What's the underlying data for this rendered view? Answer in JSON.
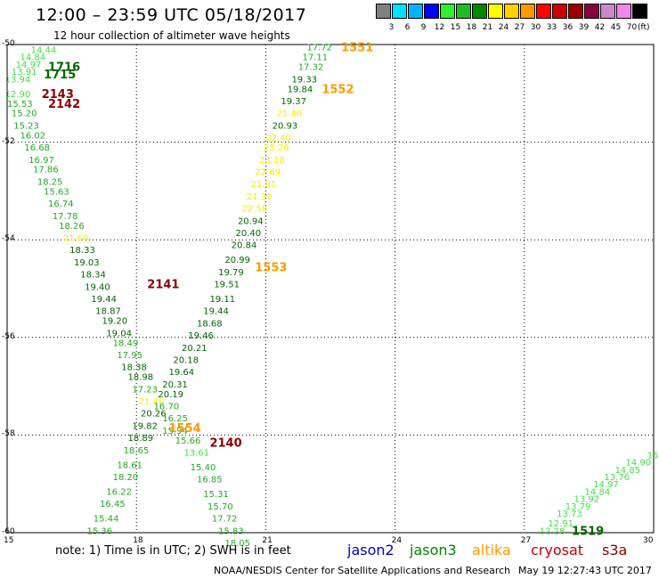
{
  "header": {
    "title": "12:00 – 23:59 UTC 05/18/2017",
    "subtitle": "12 hour collection of altimeter wave heights"
  },
  "colorbar": {
    "colors": [
      "#808080",
      "#00e0ff",
      "#00b4ff",
      "#0000ff",
      "#33ee33",
      "#22bb22",
      "#008800",
      "#ffff00",
      "#ffd000",
      "#ff9900",
      "#ff0000",
      "#cc0000",
      "#990000",
      "#880044",
      "#cc88cc",
      "#ee88ee",
      "#000000"
    ],
    "labels": [
      "3",
      "6",
      "9",
      "12",
      "15",
      "18",
      "21",
      "24",
      "27",
      "30",
      "33",
      "36",
      "39",
      "42",
      "45",
      "70"
    ],
    "unit": "(ft)"
  },
  "axes": {
    "x_ticks": [
      "15",
      "18",
      "21",
      "24",
      "27",
      "30"
    ],
    "y_ticks": [
      "-50",
      "-52",
      "-54",
      "-56",
      "-58",
      "-60"
    ]
  },
  "colors": {
    "lightgreen": "#44dd44",
    "medgreen": "#22aa22",
    "darkgreen": "#006600",
    "yellow": "#f0f000",
    "orange": "#ff9900",
    "darkred": "#8b0000"
  },
  "track_labels": [
    {
      "text": "1716",
      "x": 15.95,
      "y": -50.45,
      "c": "darkgreen",
      "b": 1
    },
    {
      "text": "1715",
      "x": 15.85,
      "y": -50.6,
      "c": "darkgreen",
      "b": 1
    },
    {
      "text": "2143",
      "x": 15.8,
      "y": -51.0,
      "c": "darkred",
      "b": 1
    },
    {
      "text": "2142",
      "x": 15.95,
      "y": -51.2,
      "c": "darkred",
      "b": 1
    },
    {
      "text": "1551",
      "x": 22.75,
      "y": -50.05,
      "c": "orange",
      "b": 1
    },
    {
      "text": "1552",
      "x": 22.3,
      "y": -50.9,
      "c": "orange",
      "b": 1
    },
    {
      "text": "1553",
      "x": 20.75,
      "y": -54.55,
      "c": "orange",
      "b": 1
    },
    {
      "text": "2141",
      "x": 18.25,
      "y": -54.9,
      "c": "darkred",
      "b": 1
    },
    {
      "text": "1554",
      "x": 18.75,
      "y": -57.85,
      "c": "orange",
      "b": 1
    },
    {
      "text": "2140",
      "x": 19.7,
      "y": -58.15,
      "c": "darkred",
      "b": 1
    },
    {
      "text": "1519",
      "x": 28.1,
      "y": -59.95,
      "c": "darkgreen",
      "b": 1
    }
  ],
  "wave_heights": [
    {
      "text": "14.44",
      "x": 15.55,
      "y": -50.1,
      "c": "lightgreen"
    },
    {
      "text": "14.84",
      "x": 15.3,
      "y": -50.25,
      "c": "lightgreen"
    },
    {
      "text": "14.97",
      "x": 15.2,
      "y": -50.4,
      "c": "lightgreen"
    },
    {
      "text": "13.91",
      "x": 15.1,
      "y": -50.55,
      "c": "lightgreen"
    },
    {
      "text": "13.94",
      "x": 14.95,
      "y": -50.7,
      "c": "lightgreen"
    },
    {
      "text": "12.90",
      "x": 14.95,
      "y": -51.0,
      "c": "lightgreen"
    },
    {
      "text": "15.53",
      "x": 15.0,
      "y": -51.2,
      "c": "medgreen"
    },
    {
      "text": "15.20",
      "x": 15.1,
      "y": -51.4,
      "c": "medgreen"
    },
    {
      "text": "15.23",
      "x": 15.15,
      "y": -51.65,
      "c": "medgreen"
    },
    {
      "text": "16.02",
      "x": 15.3,
      "y": -51.85,
      "c": "medgreen"
    },
    {
      "text": "16.68",
      "x": 15.4,
      "y": -52.1,
      "c": "medgreen"
    },
    {
      "text": "16.97",
      "x": 15.5,
      "y": -52.35,
      "c": "medgreen"
    },
    {
      "text": "17.86",
      "x": 15.6,
      "y": -52.55,
      "c": "medgreen"
    },
    {
      "text": "18.25",
      "x": 15.7,
      "y": -52.8,
      "c": "medgreen"
    },
    {
      "text": "15.63",
      "x": 15.85,
      "y": -53.0,
      "c": "medgreen"
    },
    {
      "text": "16.74",
      "x": 15.95,
      "y": -53.25,
      "c": "medgreen"
    },
    {
      "text": "17.78",
      "x": 16.05,
      "y": -53.5,
      "c": "medgreen"
    },
    {
      "text": "18.26",
      "x": 16.2,
      "y": -53.7,
      "c": "medgreen"
    },
    {
      "text": "21.60",
      "x": 16.3,
      "y": -53.95,
      "c": "yellow"
    },
    {
      "text": "18.33",
      "x": 16.45,
      "y": -54.2,
      "c": "darkgreen"
    },
    {
      "text": "19.03",
      "x": 16.55,
      "y": -54.45,
      "c": "darkgreen"
    },
    {
      "text": "18.34",
      "x": 16.7,
      "y": -54.7,
      "c": "darkgreen"
    },
    {
      "text": "19.40",
      "x": 16.8,
      "y": -54.95,
      "c": "darkgreen"
    },
    {
      "text": "19.44",
      "x": 16.95,
      "y": -55.2,
      "c": "darkgreen"
    },
    {
      "text": "18.87",
      "x": 17.05,
      "y": -55.45,
      "c": "darkgreen"
    },
    {
      "text": "19.20",
      "x": 17.2,
      "y": -55.65,
      "c": "darkgreen"
    },
    {
      "text": "19.04",
      "x": 17.3,
      "y": -55.9,
      "c": "darkgreen"
    },
    {
      "text": "18.49",
      "x": 17.45,
      "y": -56.1,
      "c": "medgreen"
    },
    {
      "text": "17.95",
      "x": 17.55,
      "y": -56.35,
      "c": "medgreen"
    },
    {
      "text": "18.38",
      "x": 17.65,
      "y": -56.6,
      "c": "darkgreen"
    },
    {
      "text": "18.98",
      "x": 17.8,
      "y": -56.8,
      "c": "darkgreen"
    },
    {
      "text": "17.23",
      "x": 17.9,
      "y": -57.05,
      "c": "medgreen"
    },
    {
      "text": "21.46",
      "x": 18.05,
      "y": -57.3,
      "c": "yellow"
    },
    {
      "text": "20.26",
      "x": 18.1,
      "y": -57.55,
      "c": "darkgreen"
    },
    {
      "text": "19.82",
      "x": 17.9,
      "y": -57.8,
      "c": "darkgreen"
    },
    {
      "text": "18.89",
      "x": 17.8,
      "y": -58.05,
      "c": "darkgreen"
    },
    {
      "text": "18.65",
      "x": 17.7,
      "y": -58.3,
      "c": "medgreen"
    },
    {
      "text": "18.61",
      "x": 17.55,
      "y": -58.6,
      "c": "medgreen"
    },
    {
      "text": "18.20",
      "x": 17.45,
      "y": -58.85,
      "c": "medgreen"
    },
    {
      "text": "16.22",
      "x": 17.3,
      "y": -59.15,
      "c": "medgreen"
    },
    {
      "text": "16.45",
      "x": 17.15,
      "y": -59.4,
      "c": "medgreen"
    },
    {
      "text": "15.44",
      "x": 17.0,
      "y": -59.7,
      "c": "medgreen"
    },
    {
      "text": "15.36",
      "x": 16.85,
      "y": -59.95,
      "c": "medgreen"
    },
    {
      "text": "17.72",
      "x": 21.95,
      "y": -50.05,
      "c": "medgreen"
    },
    {
      "text": "17.11",
      "x": 21.85,
      "y": -50.25,
      "c": "medgreen"
    },
    {
      "text": "17.32",
      "x": 21.75,
      "y": -50.45,
      "c": "medgreen"
    },
    {
      "text": "19.33",
      "x": 21.6,
      "y": -50.7,
      "c": "darkgreen"
    },
    {
      "text": "19.84",
      "x": 21.5,
      "y": -50.9,
      "c": "darkgreen"
    },
    {
      "text": "19.37",
      "x": 21.35,
      "y": -51.15,
      "c": "darkgreen"
    },
    {
      "text": "21.40",
      "x": 21.25,
      "y": -51.4,
      "c": "yellow"
    },
    {
      "text": "20.93",
      "x": 21.15,
      "y": -51.65,
      "c": "darkgreen"
    },
    {
      "text": "22.40",
      "x": 21.0,
      "y": -51.9,
      "c": "yellow"
    },
    {
      "text": "23.26",
      "x": 20.95,
      "y": -52.1,
      "c": "yellow"
    },
    {
      "text": "23.18",
      "x": 20.85,
      "y": -52.35,
      "c": "yellow"
    },
    {
      "text": "22.69",
      "x": 20.75,
      "y": -52.6,
      "c": "yellow"
    },
    {
      "text": "21.91",
      "x": 20.65,
      "y": -52.85,
      "c": "yellow"
    },
    {
      "text": "21.30",
      "x": 20.55,
      "y": -53.1,
      "c": "yellow"
    },
    {
      "text": "22.58",
      "x": 20.45,
      "y": -53.35,
      "c": "yellow"
    },
    {
      "text": "20.94",
      "x": 20.35,
      "y": -53.6,
      "c": "darkgreen"
    },
    {
      "text": "20.40",
      "x": 20.3,
      "y": -53.85,
      "c": "darkgreen"
    },
    {
      "text": "20.84",
      "x": 20.2,
      "y": -54.1,
      "c": "darkgreen"
    },
    {
      "text": "20.99",
      "x": 20.05,
      "y": -54.4,
      "c": "darkgreen"
    },
    {
      "text": "19.79",
      "x": 19.9,
      "y": -54.65,
      "c": "darkgreen"
    },
    {
      "text": "19.51",
      "x": 19.8,
      "y": -54.9,
      "c": "darkgreen"
    },
    {
      "text": "19.11",
      "x": 19.7,
      "y": -55.2,
      "c": "darkgreen"
    },
    {
      "text": "19.44",
      "x": 19.55,
      "y": -55.45,
      "c": "darkgreen"
    },
    {
      "text": "18.68",
      "x": 19.4,
      "y": -55.7,
      "c": "darkgreen"
    },
    {
      "text": "19.46",
      "x": 19.2,
      "y": -55.95,
      "c": "darkgreen"
    },
    {
      "text": "20.21",
      "x": 19.05,
      "y": -56.2,
      "c": "darkgreen"
    },
    {
      "text": "20.18",
      "x": 18.85,
      "y": -56.45,
      "c": "darkgreen"
    },
    {
      "text": "19.64",
      "x": 18.75,
      "y": -56.7,
      "c": "darkgreen"
    },
    {
      "text": "20.31",
      "x": 18.6,
      "y": -56.95,
      "c": "darkgreen"
    },
    {
      "text": "20.19",
      "x": 18.5,
      "y": -57.15,
      "c": "darkgreen"
    },
    {
      "text": "16.70",
      "x": 18.4,
      "y": -57.4,
      "c": "medgreen"
    },
    {
      "text": "16.25",
      "x": 18.6,
      "y": -57.65,
      "c": "medgreen"
    },
    {
      "text": "15.94",
      "x": 18.6,
      "y": -57.9,
      "c": "medgreen"
    },
    {
      "text": "15.66",
      "x": 18.9,
      "y": -58.1,
      "c": "medgreen"
    },
    {
      "text": "13.61",
      "x": 19.1,
      "y": -58.35,
      "c": "lightgreen"
    },
    {
      "text": "15.40",
      "x": 19.25,
      "y": -58.65,
      "c": "medgreen"
    },
    {
      "text": "16.85",
      "x": 19.4,
      "y": -58.9,
      "c": "medgreen"
    },
    {
      "text": "15.31",
      "x": 19.55,
      "y": -59.2,
      "c": "medgreen"
    },
    {
      "text": "15.70",
      "x": 19.65,
      "y": -59.45,
      "c": "medgreen"
    },
    {
      "text": "17.72",
      "x": 19.75,
      "y": -59.7,
      "c": "medgreen"
    },
    {
      "text": "15.83",
      "x": 19.9,
      "y": -59.95,
      "c": "medgreen"
    },
    {
      "text": "18.05",
      "x": 20.05,
      "y": -60.2,
      "c": "medgreen"
    },
    {
      "text": "12.28",
      "x": 27.35,
      "y": -59.95,
      "c": "lightgreen"
    },
    {
      "text": "12.91",
      "x": 27.55,
      "y": -59.8,
      "c": "lightgreen"
    },
    {
      "text": "13.73",
      "x": 27.75,
      "y": -59.6,
      "c": "lightgreen"
    },
    {
      "text": "13.79",
      "x": 27.95,
      "y": -59.45,
      "c": "lightgreen"
    },
    {
      "text": "13.92",
      "x": 28.15,
      "y": -59.3,
      "c": "lightgreen"
    },
    {
      "text": "14.84",
      "x": 28.4,
      "y": -59.15,
      "c": "lightgreen"
    },
    {
      "text": "14.97",
      "x": 28.6,
      "y": -59.0,
      "c": "lightgreen"
    },
    {
      "text": "13.76",
      "x": 28.85,
      "y": -58.85,
      "c": "lightgreen"
    },
    {
      "text": "14.85",
      "x": 29.1,
      "y": -58.7,
      "c": "lightgreen"
    },
    {
      "text": "14.90",
      "x": 29.35,
      "y": -58.55,
      "c": "lightgreen"
    },
    {
      "text": "15",
      "x": 29.85,
      "y": -58.4,
      "c": "lightgreen"
    }
  ],
  "footer": {
    "note": "note: 1) Time is in UTC; 2) SWH is in feet",
    "legend": [
      {
        "name": "jason2",
        "color": "#0000cc"
      },
      {
        "name": "jason3",
        "color": "#008800"
      },
      {
        "name": "altika",
        "color": "#ff9900"
      },
      {
        "name": "cryosat",
        "color": "#cc0000"
      },
      {
        "name": "s3a",
        "color": "#8b0000"
      }
    ],
    "credit": "NOAA/NESDIS Center for Satellite Applications and Research",
    "timestamp": "May 19 12:27:43 UTC 2017"
  }
}
